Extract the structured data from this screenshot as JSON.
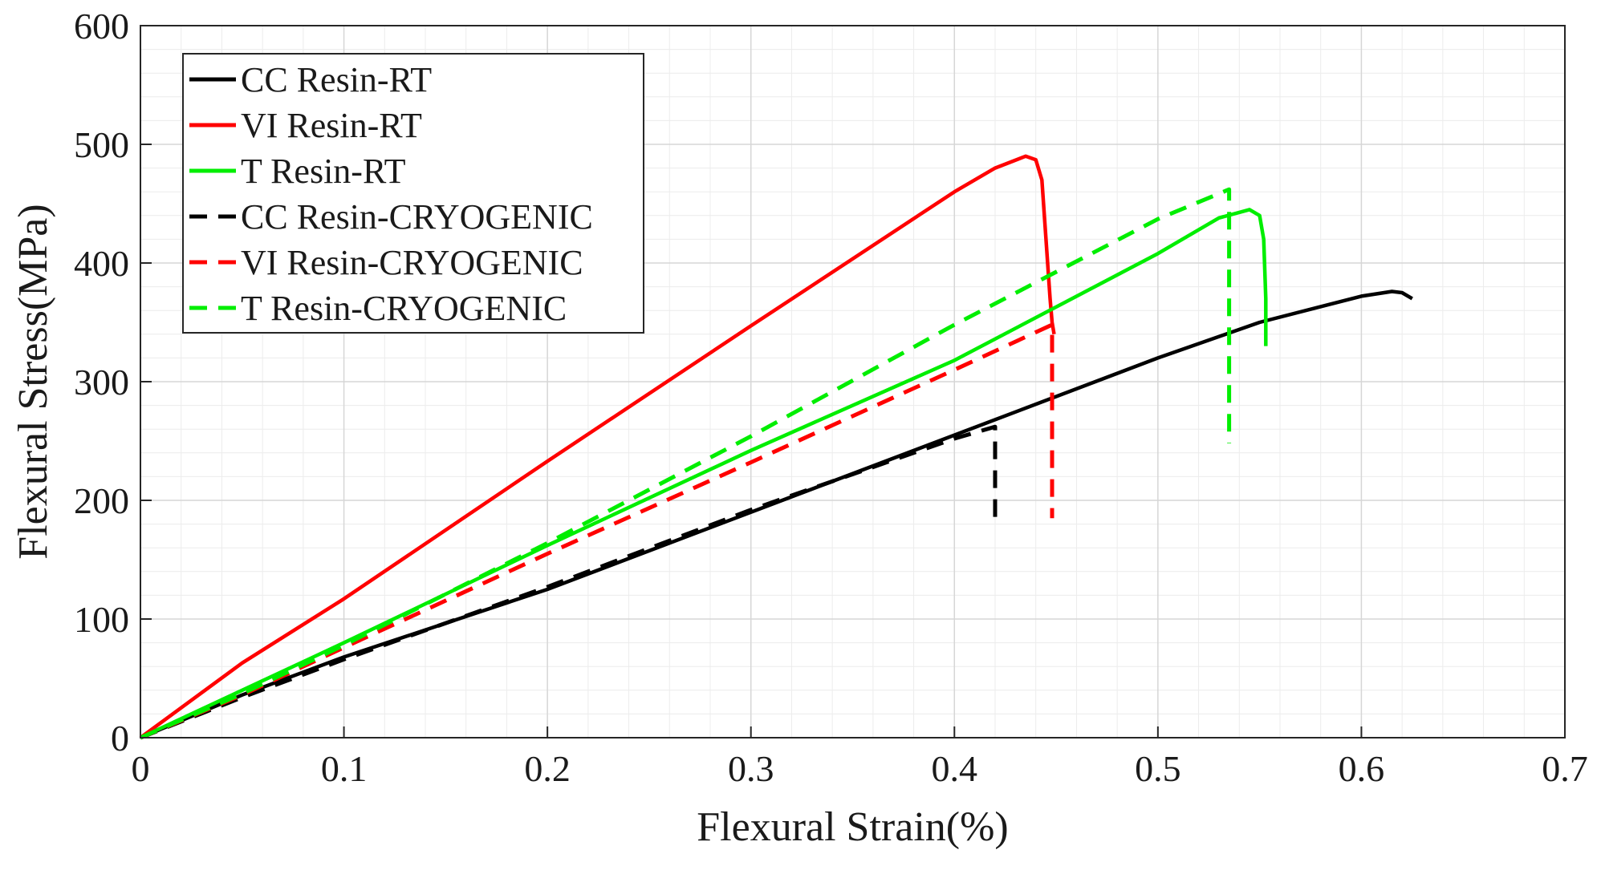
{
  "chart_data": {
    "type": "line",
    "title": "",
    "xlabel": "Flexural Strain(%)",
    "ylabel": "Flexural Stress(MPa)",
    "xlim": [
      0,
      0.7
    ],
    "ylim": [
      0,
      600
    ],
    "xticks": [
      0,
      0.1,
      0.2,
      0.3,
      0.4,
      0.5,
      0.6,
      0.7
    ],
    "yticks": [
      0,
      100,
      200,
      300,
      400,
      500,
      600
    ],
    "xtick_labels": [
      "0",
      "0.1",
      "0.2",
      "0.3",
      "0.4",
      "0.5",
      "0.6",
      "0.7"
    ],
    "ytick_labels": [
      "0",
      "100",
      "200",
      "300",
      "400",
      "500",
      "600"
    ],
    "grid": true,
    "minor_grid": true,
    "legend_position": "top-left",
    "series": [
      {
        "name": "CC Resin-RT",
        "color": "#000000",
        "dash": "solid",
        "x": [
          0,
          0.05,
          0.1,
          0.2,
          0.3,
          0.4,
          0.5,
          0.55,
          0.6,
          0.615,
          0.62,
          0.625
        ],
        "y": [
          0,
          36,
          68,
          125,
          190,
          255,
          320,
          350,
          372,
          376,
          375,
          370
        ]
      },
      {
        "name": "VI Resin-RT",
        "color": "#ff0000",
        "dash": "solid",
        "x": [
          0,
          0.05,
          0.1,
          0.2,
          0.3,
          0.4,
          0.42,
          0.435,
          0.44,
          0.443,
          0.445,
          0.447,
          0.448,
          0.449
        ],
        "y": [
          0,
          63,
          117,
          233,
          347,
          460,
          480,
          490,
          487,
          470,
          420,
          370,
          350,
          340
        ]
      },
      {
        "name": "T Resin-RT",
        "color": "#00ee00",
        "dash": "solid",
        "x": [
          0,
          0.05,
          0.1,
          0.2,
          0.3,
          0.4,
          0.5,
          0.53,
          0.545,
          0.55,
          0.552,
          0.553,
          0.553
        ],
        "y": [
          0,
          40,
          80,
          162,
          242,
          318,
          408,
          438,
          445,
          440,
          420,
          370,
          330
        ]
      },
      {
        "name": "CC Resin-CRYOGENIC",
        "color": "#000000",
        "dash": "dashed",
        "x": [
          0,
          0.05,
          0.1,
          0.2,
          0.3,
          0.4,
          0.42,
          0.42
        ],
        "y": [
          0,
          34,
          66,
          127,
          192,
          252,
          262,
          180
        ]
      },
      {
        "name": "VI Resin-CRYOGENIC",
        "color": "#ff0000",
        "dash": "dashed",
        "x": [
          0,
          0.05,
          0.1,
          0.2,
          0.3,
          0.4,
          0.448,
          0.448
        ],
        "y": [
          0,
          36,
          76,
          155,
          232,
          310,
          348,
          185
        ]
      },
      {
        "name": "T Resin-CRYOGENIC",
        "color": "#00ee00",
        "dash": "dashed",
        "x": [
          0,
          0.05,
          0.1,
          0.2,
          0.3,
          0.4,
          0.5,
          0.535,
          0.535
        ],
        "y": [
          0,
          37,
          78,
          164,
          254,
          348,
          437,
          462,
          248
        ]
      }
    ]
  }
}
